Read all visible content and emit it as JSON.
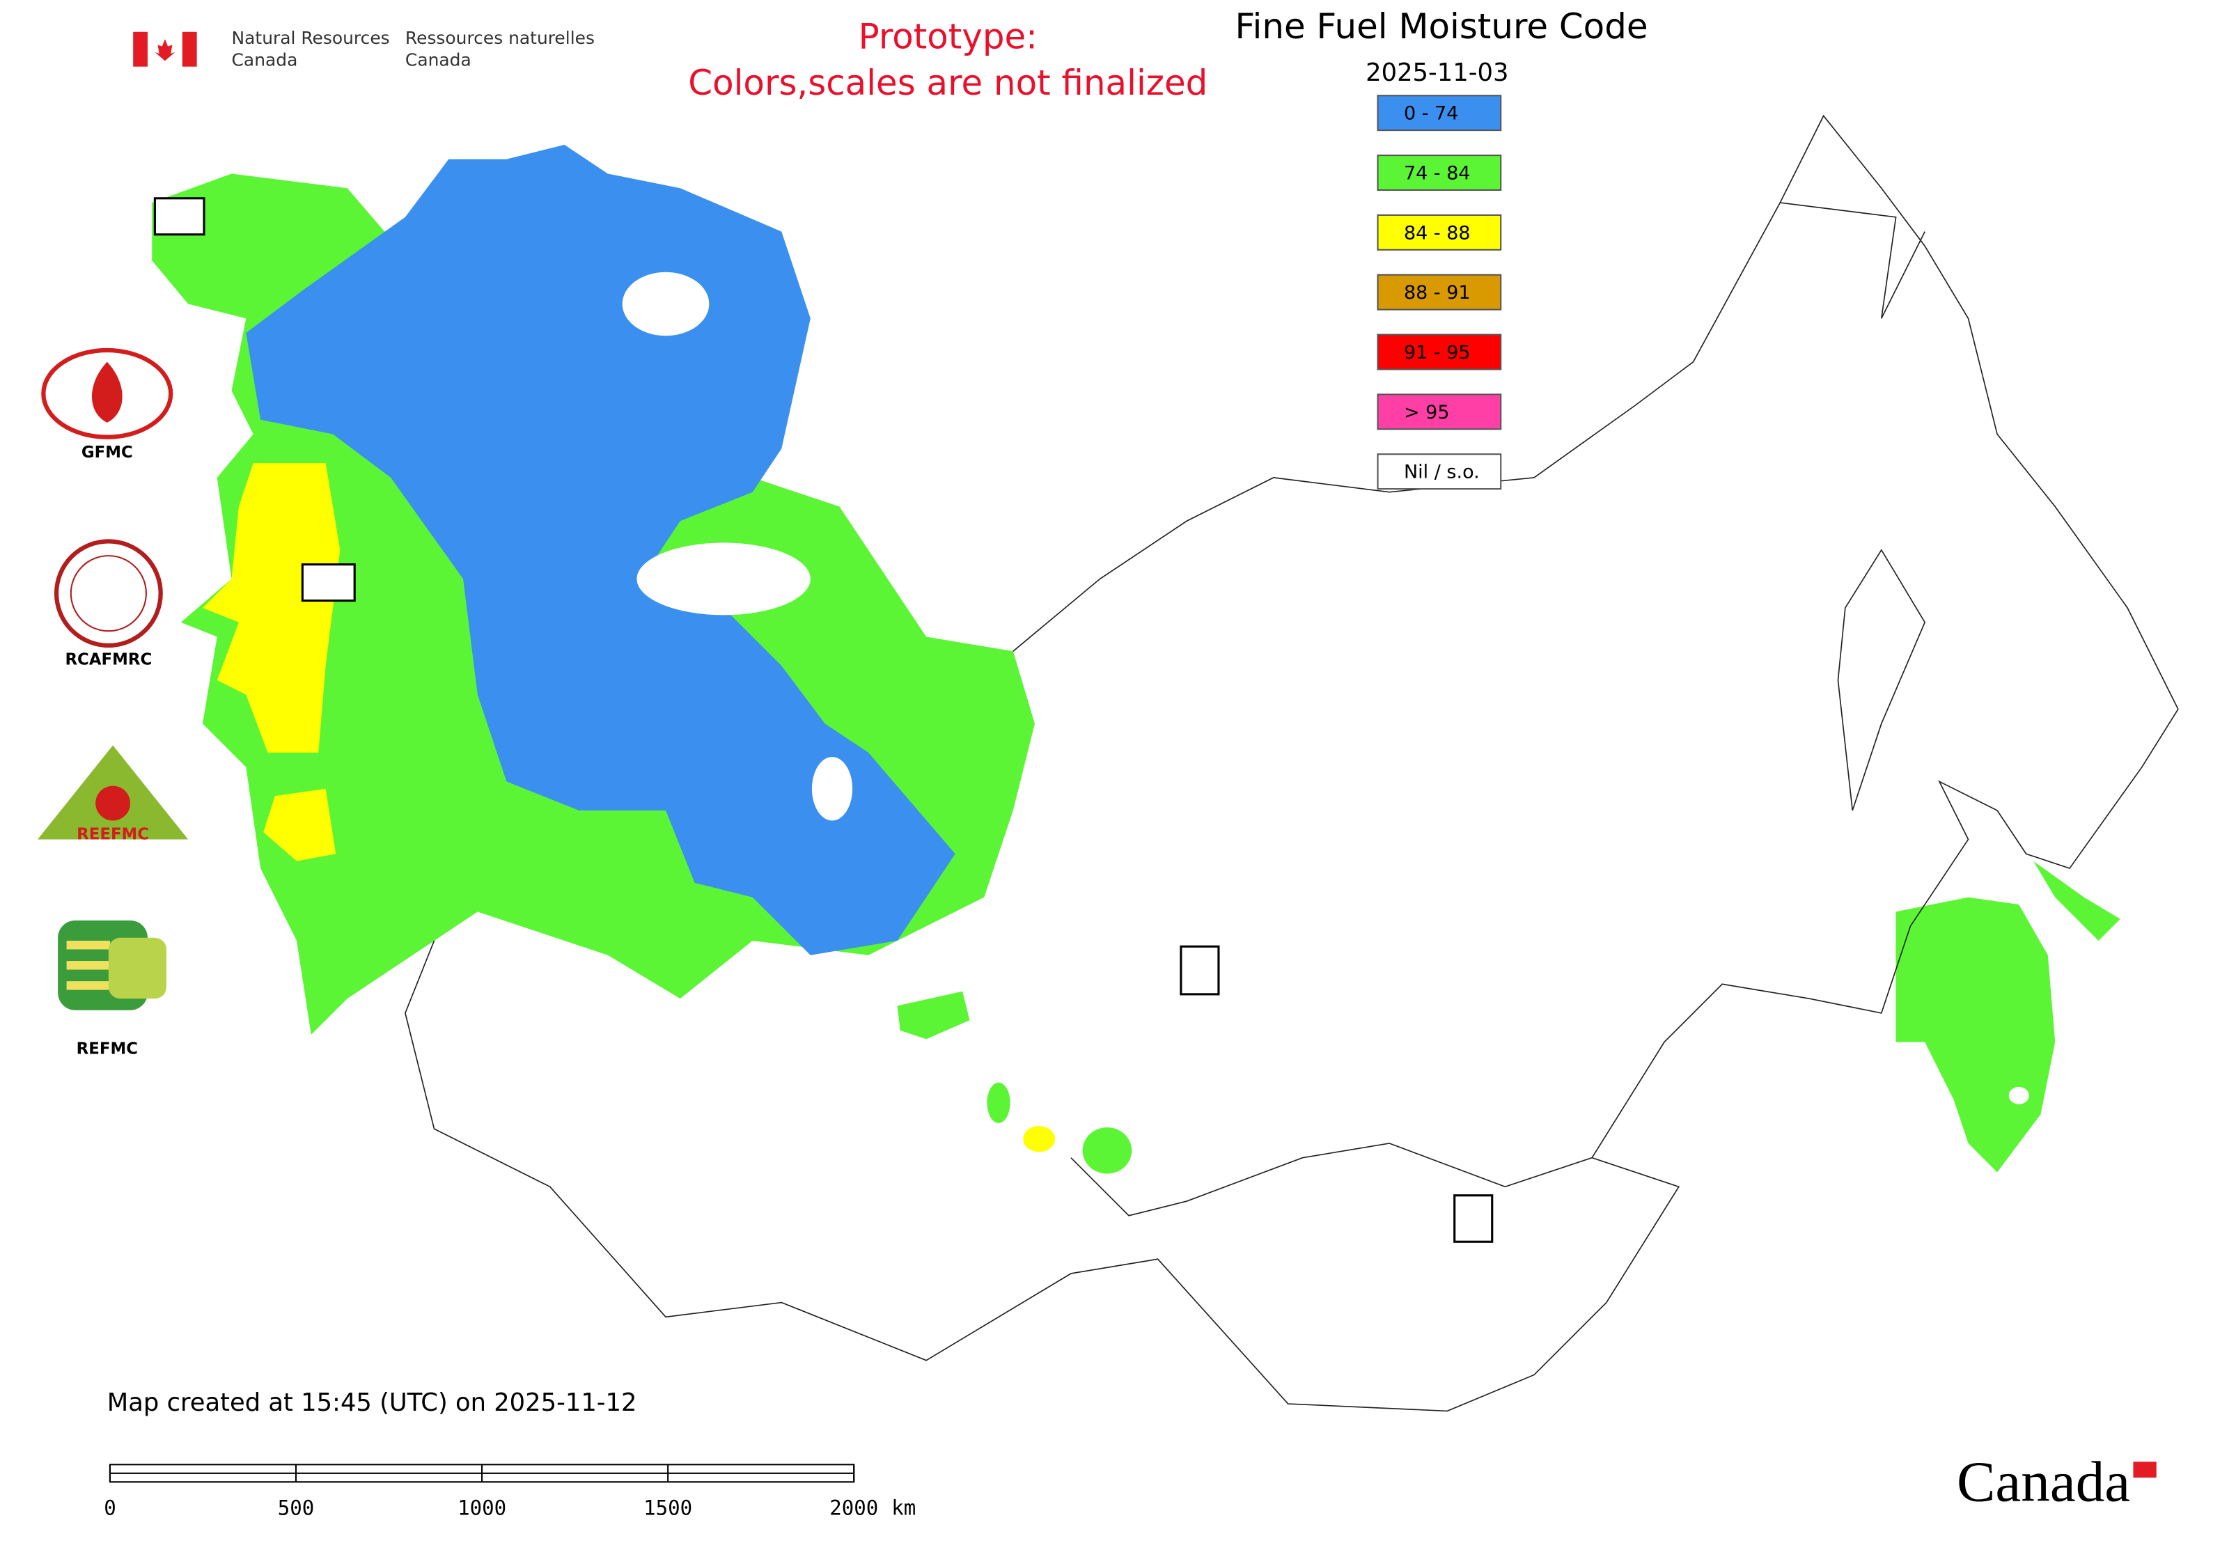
{
  "header": {
    "dept_en": [
      "Natural Resources",
      "Canada"
    ],
    "dept_fr": [
      "Ressources naturelles",
      "Canada"
    ],
    "notice": [
      "Prototype:",
      "Colors,scales are not finalized"
    ],
    "title": "Fine Fuel Moisture Code",
    "date": "2025-11-03"
  },
  "legend": [
    {
      "label": "0 - 74",
      "color": "#3a8fef"
    },
    {
      "label": "74 - 84",
      "color": "#5cf536"
    },
    {
      "label": "84 - 88",
      "color": "#ffff00"
    },
    {
      "label": "88 - 91",
      "color": "#d89a00"
    },
    {
      "label": "91 - 95",
      "color": "#ff0000"
    },
    {
      "label": "> 95",
      "color": "#ff3fa6"
    },
    {
      "label": "Nil / s.o.",
      "color": "#ffffff"
    }
  ],
  "logos": [
    {
      "label": "GFMC"
    },
    {
      "label": "RCAFMRC"
    },
    {
      "label": "REEFMC"
    },
    {
      "label": "REFMC"
    }
  ],
  "footer": {
    "created": "Map created at 15:45 (UTC) on 2025-11-12",
    "wordmark": "Canada"
  },
  "scale_bar": {
    "ticks": [
      0,
      500,
      1000,
      1500,
      2000
    ],
    "unit": "km"
  }
}
